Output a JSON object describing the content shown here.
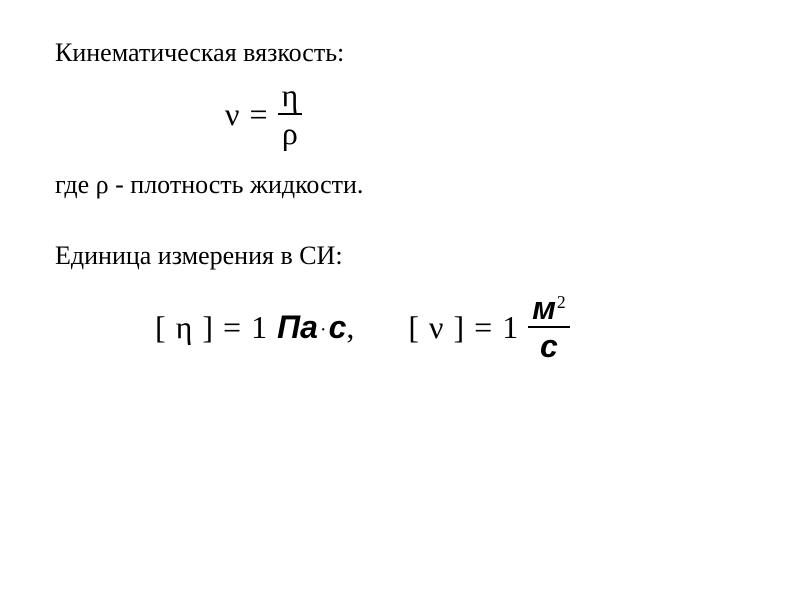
{
  "colors": {
    "background": "#ffffff",
    "text": "#000000",
    "fraction_bar": "#000000"
  },
  "typography": {
    "body_font": "Times New Roman",
    "body_size_pt": 20,
    "formula_size_pt": 24,
    "italic_symbol_font": "Arial"
  },
  "heading": {
    "text": "Кинематическая вязкость:"
  },
  "formula1": {
    "lhs_symbol": "ν",
    "equals": "=",
    "numerator": "η",
    "denominator": "ρ"
  },
  "where_line": {
    "prefix": "где ",
    "symbol": "ρ",
    "suffix": " - плотность жидкости."
  },
  "si_line": {
    "text": "Единица измерения в СИ:"
  },
  "formula2": {
    "part1": {
      "lbracket": "[",
      "symbol": "η",
      "rbracket": "]",
      "equals": "=",
      "value": "1",
      "unit_pa": "Па",
      "dot": "·",
      "unit_s": "с",
      "comma": ","
    },
    "part2": {
      "lbracket": "[",
      "symbol": "ν",
      "rbracket": "]",
      "equals": "=",
      "value": "1",
      "frac_num_base": "м",
      "frac_num_exp": "2",
      "frac_den": "с"
    }
  }
}
